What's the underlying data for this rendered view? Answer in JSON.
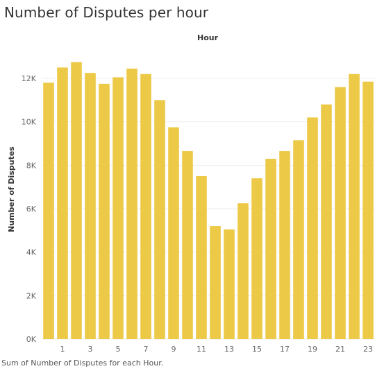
{
  "title": "Number of Disputes per hour",
  "caption": "Sum of Number of Disputes for each Hour.",
  "chart_data": {
    "type": "bar",
    "title": "Number of Disputes per hour",
    "xlabel": "Hour",
    "ylabel": "Number of Disputes",
    "categories": [
      0,
      1,
      2,
      3,
      4,
      5,
      6,
      7,
      8,
      9,
      10,
      11,
      12,
      13,
      14,
      15,
      16,
      17,
      18,
      19,
      20,
      21,
      22,
      23
    ],
    "x_tick_labels": [
      "1",
      "3",
      "5",
      "7",
      "9",
      "11",
      "13",
      "15",
      "17",
      "19",
      "21",
      "23"
    ],
    "values": [
      11800,
      12500,
      12750,
      12250,
      11750,
      12050,
      12450,
      12200,
      11000,
      9750,
      8650,
      7500,
      5200,
      5050,
      6250,
      7400,
      8300,
      8650,
      9150,
      10200,
      10800,
      11600,
      12200,
      11850
    ],
    "ylim": [
      0,
      13500
    ],
    "y_ticks": [
      0,
      2000,
      4000,
      6000,
      8000,
      10000,
      12000
    ],
    "y_tick_labels": [
      "0K",
      "2K",
      "4K",
      "6K",
      "8K",
      "10K",
      "12K"
    ],
    "bar_color": "#EDC948",
    "grid": "horizontal",
    "legend": "none"
  }
}
